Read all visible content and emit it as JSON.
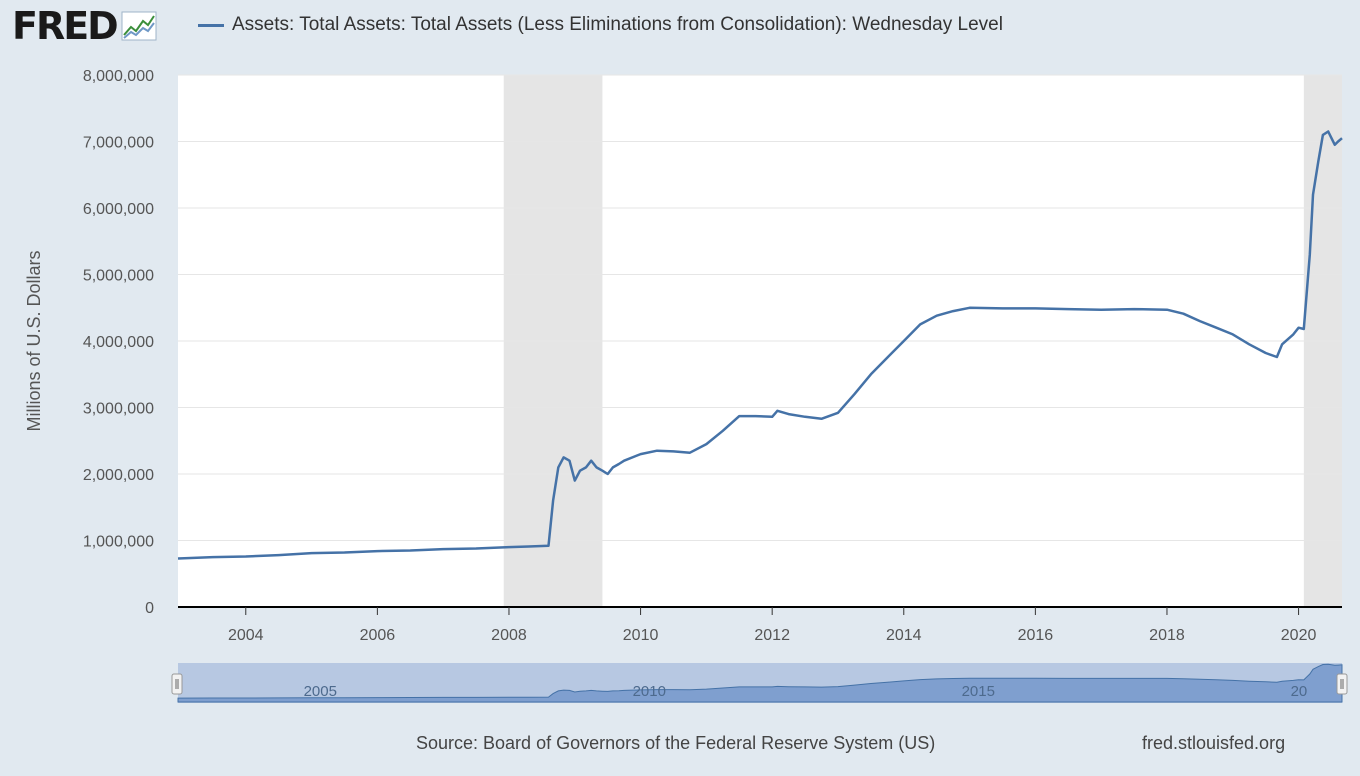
{
  "brand": {
    "name": "FRED",
    "logo_icon": "fred-sparkline-icon"
  },
  "legend": {
    "label": "Assets: Total Assets: Total Assets (Less Eliminations from Consolidation): Wednesday Level",
    "color": "#4572a7"
  },
  "footer": {
    "source": "Source: Board of Governors of the Federal Reserve System (US)",
    "site": "fred.stlouisfed.org"
  },
  "navigator": {
    "tick_labels": [
      "2005",
      "2010",
      "2015",
      "20"
    ]
  },
  "colors": {
    "background": "#e1e9f0",
    "plot_background": "#ffffff",
    "series": "#4572a7",
    "recession": "#e5e5e5",
    "navigator_mask": "#b7c8e2",
    "navigator_fill": "#7f9fcf"
  },
  "chart_data": {
    "type": "line",
    "title": "",
    "xlabel": "",
    "ylabel": "Millions of U.S. Dollars",
    "xlim": [
      2002.97,
      2020.66
    ],
    "ylim": [
      0,
      8000000
    ],
    "y_ticks": [
      0,
      1000000,
      2000000,
      3000000,
      4000000,
      5000000,
      6000000,
      7000000,
      8000000
    ],
    "y_tick_labels": [
      "0",
      "1,000,000",
      "2,000,000",
      "3,000,000",
      "4,000,000",
      "5,000,000",
      "6,000,000",
      "7,000,000",
      "8,000,000"
    ],
    "x_ticks": [
      2004,
      2006,
      2008,
      2010,
      2012,
      2014,
      2016,
      2018,
      2020
    ],
    "x_tick_labels": [
      "2004",
      "2006",
      "2008",
      "2010",
      "2012",
      "2014",
      "2016",
      "2018",
      "2020"
    ],
    "grid": true,
    "recessions": [
      [
        2007.92,
        2009.42
      ],
      [
        2020.08,
        2020.66
      ]
    ],
    "series": [
      {
        "name": "Assets: Total Assets: Total Assets (Less Eliminations from Consolidation): Wednesday Level",
        "x": [
          2002.97,
          2003.5,
          2004.0,
          2004.5,
          2005.0,
          2005.5,
          2006.0,
          2006.5,
          2007.0,
          2007.5,
          2008.0,
          2008.3,
          2008.6,
          2008.67,
          2008.75,
          2008.83,
          2008.92,
          2009.0,
          2009.08,
          2009.17,
          2009.25,
          2009.33,
          2009.42,
          2009.5,
          2009.58,
          2009.67,
          2009.75,
          2010.0,
          2010.25,
          2010.5,
          2010.75,
          2011.0,
          2011.25,
          2011.5,
          2011.75,
          2012.0,
          2012.08,
          2012.25,
          2012.5,
          2012.75,
          2013.0,
          2013.25,
          2013.5,
          2013.75,
          2014.0,
          2014.25,
          2014.5,
          2014.75,
          2015.0,
          2015.5,
          2016.0,
          2016.5,
          2017.0,
          2017.5,
          2018.0,
          2018.25,
          2018.5,
          2018.75,
          2019.0,
          2019.25,
          2019.5,
          2019.67,
          2019.75,
          2019.92,
          2020.0,
          2020.08,
          2020.17,
          2020.22,
          2020.3,
          2020.37,
          2020.45,
          2020.5,
          2020.55,
          2020.6,
          2020.66
        ],
        "y": [
          730000,
          750000,
          760000,
          780000,
          810000,
          820000,
          840000,
          850000,
          870000,
          880000,
          900000,
          910000,
          920000,
          1600000,
          2100000,
          2250000,
          2200000,
          1900000,
          2050000,
          2100000,
          2200000,
          2100000,
          2050000,
          2000000,
          2100000,
          2150000,
          2200000,
          2300000,
          2350000,
          2340000,
          2320000,
          2450000,
          2650000,
          2870000,
          2870000,
          2860000,
          2950000,
          2900000,
          2860000,
          2830000,
          2920000,
          3200000,
          3500000,
          3750000,
          4000000,
          4250000,
          4380000,
          4450000,
          4500000,
          4490000,
          4490000,
          4480000,
          4470000,
          4480000,
          4470000,
          4410000,
          4300000,
          4200000,
          4100000,
          3950000,
          3820000,
          3760000,
          3950000,
          4100000,
          4200000,
          4180000,
          5300000,
          6200000,
          6700000,
          7100000,
          7150000,
          7050000,
          6950000,
          7000000,
          7050000
        ]
      }
    ]
  }
}
